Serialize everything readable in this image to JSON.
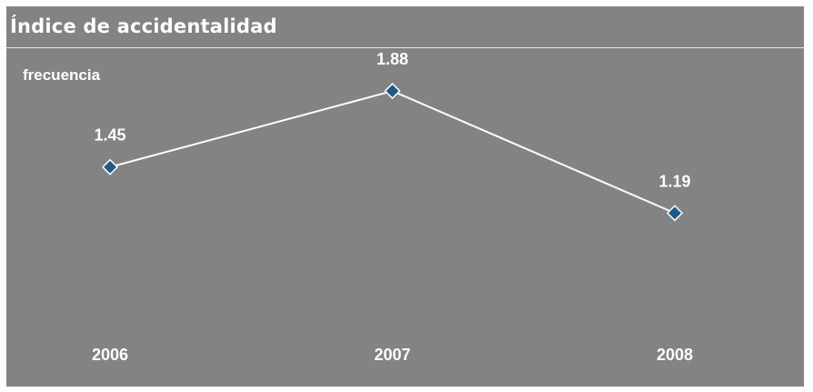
{
  "chart_data": {
    "type": "line",
    "title": "Índice de accidentalidad",
    "ylabel": "frecuencia",
    "xlabel": "",
    "categories": [
      "2006",
      "2007",
      "2008"
    ],
    "series": [
      {
        "values": [
          1.45,
          1.88,
          1.19
        ]
      }
    ],
    "data_labels": [
      "1.45",
      "1.88",
      "1.19"
    ],
    "ylim": [
      0.6,
      2.05
    ],
    "grid": false,
    "legend": "none",
    "colors": {
      "background": "#838383",
      "line": "#ffffff",
      "marker": "#1a5a8c",
      "marker_outline": "#ffffff",
      "text": "#ffffff"
    }
  }
}
